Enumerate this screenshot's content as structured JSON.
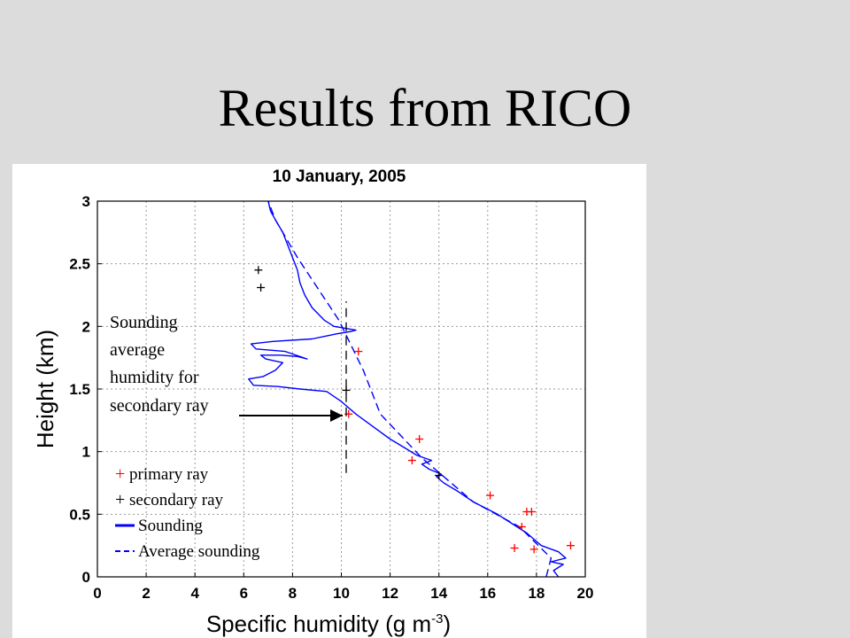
{
  "slide": {
    "title": "Results from RICO"
  },
  "annotation": {
    "lines": [
      "Sounding",
      "average",
      "humidity for",
      "secondary ray"
    ]
  },
  "colors": {
    "sounding": "#0000ff",
    "primary": "#ff0000",
    "secondary": "#000000",
    "grid": "#9a9a9a",
    "background": "#dcdcdc"
  },
  "chart_data": {
    "type": "line",
    "title": "10 January, 2005",
    "xlabel": "Specific humidity (g m",
    "xlabel_sup": "-3",
    "xlabel_close": ")",
    "ylabel": "Height (km)",
    "xlim": [
      0,
      20
    ],
    "ylim": [
      0,
      3
    ],
    "xticks": [
      0,
      2,
      4,
      6,
      8,
      10,
      12,
      14,
      16,
      18,
      20
    ],
    "yticks": [
      0,
      0.5,
      1,
      1.5,
      2,
      2.5,
      3
    ],
    "ytick_labels": [
      "0",
      "0.5",
      "1",
      "1.5",
      "2",
      "2.5",
      "3"
    ],
    "grid": true,
    "legend_position": "lower-left",
    "series": [
      {
        "name": "Sounding",
        "style": "solid",
        "color": "#0000ff",
        "points": [
          [
            18.9,
            0.0
          ],
          [
            18.7,
            0.05
          ],
          [
            19.1,
            0.1
          ],
          [
            18.6,
            0.12
          ],
          [
            19.2,
            0.15
          ],
          [
            18.9,
            0.2
          ],
          [
            18.2,
            0.25
          ],
          [
            17.9,
            0.3
          ],
          [
            17.6,
            0.35
          ],
          [
            17.2,
            0.4
          ],
          [
            16.8,
            0.45
          ],
          [
            16.4,
            0.5
          ],
          [
            15.9,
            0.55
          ],
          [
            15.4,
            0.6
          ],
          [
            14.8,
            0.68
          ],
          [
            14.2,
            0.75
          ],
          [
            13.9,
            0.8
          ],
          [
            14.1,
            0.82
          ],
          [
            13.6,
            0.86
          ],
          [
            13.3,
            0.9
          ],
          [
            13.7,
            0.93
          ],
          [
            13.1,
            0.97
          ],
          [
            12.6,
            1.03
          ],
          [
            12.0,
            1.1
          ],
          [
            11.3,
            1.2
          ],
          [
            10.6,
            1.3
          ],
          [
            10.0,
            1.4
          ],
          [
            9.4,
            1.48
          ],
          [
            8.3,
            1.5
          ],
          [
            7.4,
            1.52
          ],
          [
            6.4,
            1.53
          ],
          [
            6.2,
            1.58
          ],
          [
            6.8,
            1.6
          ],
          [
            7.3,
            1.65
          ],
          [
            7.6,
            1.71
          ],
          [
            6.9,
            1.74
          ],
          [
            6.7,
            1.77
          ],
          [
            7.5,
            1.77
          ],
          [
            8.2,
            1.76
          ],
          [
            8.6,
            1.74
          ],
          [
            7.7,
            1.8
          ],
          [
            6.5,
            1.82
          ],
          [
            6.3,
            1.86
          ],
          [
            7.2,
            1.88
          ],
          [
            8.8,
            1.9
          ],
          [
            9.8,
            1.94
          ],
          [
            10.4,
            1.96
          ],
          [
            10.6,
            1.97
          ],
          [
            9.7,
            2.0
          ],
          [
            9.3,
            2.05
          ],
          [
            8.8,
            2.15
          ],
          [
            8.5,
            2.25
          ],
          [
            8.3,
            2.35
          ],
          [
            8.2,
            2.45
          ],
          [
            8.0,
            2.55
          ],
          [
            7.8,
            2.65
          ],
          [
            7.6,
            2.75
          ],
          [
            7.3,
            2.85
          ],
          [
            7.1,
            2.92
          ],
          [
            7.0,
            3.0
          ]
        ]
      },
      {
        "name": "Average sounding",
        "style": "dashed",
        "color": "#0000ff",
        "points": [
          [
            18.4,
            0.0
          ],
          [
            18.6,
            0.15
          ],
          [
            17.3,
            0.4
          ],
          [
            15.4,
            0.6
          ],
          [
            13.3,
            0.95
          ],
          [
            11.6,
            1.3
          ],
          [
            10.9,
            1.65
          ],
          [
            9.9,
            2.05
          ],
          [
            8.2,
            2.55
          ],
          [
            7.3,
            2.85
          ],
          [
            7.0,
            3.0
          ]
        ]
      },
      {
        "name": "primary ray",
        "style": "marker",
        "color": "#ff0000",
        "points": [
          [
            10.7,
            1.8
          ],
          [
            10.3,
            1.3
          ],
          [
            13.2,
            1.1
          ],
          [
            12.9,
            0.93
          ],
          [
            16.1,
            0.65
          ],
          [
            17.6,
            0.52
          ],
          [
            17.8,
            0.52
          ],
          [
            17.4,
            0.4
          ],
          [
            17.1,
            0.23
          ],
          [
            17.9,
            0.22
          ],
          [
            19.4,
            0.25
          ]
        ]
      },
      {
        "name": "secondary ray",
        "style": "marker",
        "color": "#000000",
        "points": [
          [
            6.6,
            2.45
          ],
          [
            6.7,
            2.31
          ],
          [
            10.2,
            1.49
          ],
          [
            14.0,
            0.81
          ]
        ]
      },
      {
        "name": "",
        "style": "vertical-dashed",
        "color": "#000000",
        "points": [
          [
            10.2,
            0.83
          ],
          [
            10.2,
            2.2
          ]
        ]
      }
    ],
    "legend": [
      {
        "label": "primary ray",
        "symbol": "+",
        "color": "#ff0000"
      },
      {
        "label": "secondary ray",
        "symbol": "+",
        "color": "#000000"
      },
      {
        "label": "Sounding",
        "symbol": "solid",
        "color": "#0000ff"
      },
      {
        "label": "Average sounding",
        "symbol": "dashed",
        "color": "#0000ff"
      }
    ]
  }
}
